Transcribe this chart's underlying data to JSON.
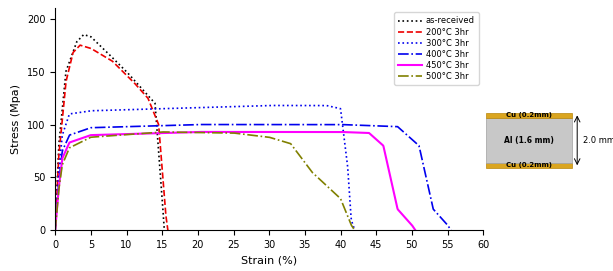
{
  "xlabel": "Strain (%)",
  "ylabel": "Stress (Mpa)",
  "xlim": [
    0,
    60
  ],
  "ylim": [
    0,
    210
  ],
  "yticks": [
    0,
    50,
    100,
    150,
    200
  ],
  "xticks": [
    0,
    5,
    10,
    15,
    20,
    25,
    30,
    35,
    40,
    45,
    50,
    55,
    60
  ],
  "legend_entries": [
    {
      "label": "as-received",
      "color": "black",
      "linestyle": "dotted",
      "lw": 1.2
    },
    {
      "label": "200°C 3hr",
      "color": "#EE0000",
      "linestyle": "dashed",
      "lw": 1.2
    },
    {
      "label": "300°C 3hr",
      "color": "#0000EE",
      "linestyle": "dotted",
      "lw": 1.2
    },
    {
      "label": "400°C 3hr",
      "color": "#0000EE",
      "linestyle": "dashdot",
      "lw": 1.2
    },
    {
      "label": "450°C 3hr",
      "color": "#FF00FF",
      "linestyle": "solid",
      "lw": 1.5
    },
    {
      "label": "500°C 3hr",
      "color": "#808000",
      "linestyle": "dashdot",
      "lw": 1.2
    }
  ],
  "clad_colors": {
    "cu": "#DAA520",
    "al": "#C8C8C8",
    "cu_border": "#B8860B",
    "al_border": "#A0A0A0"
  },
  "clad_labels": {
    "cu_top": "Cu (0.2mm)",
    "al_mid": "Al (1.6 mm)",
    "cu_bot": "Cu (0.2mm)",
    "dim": "2.0 mm"
  }
}
